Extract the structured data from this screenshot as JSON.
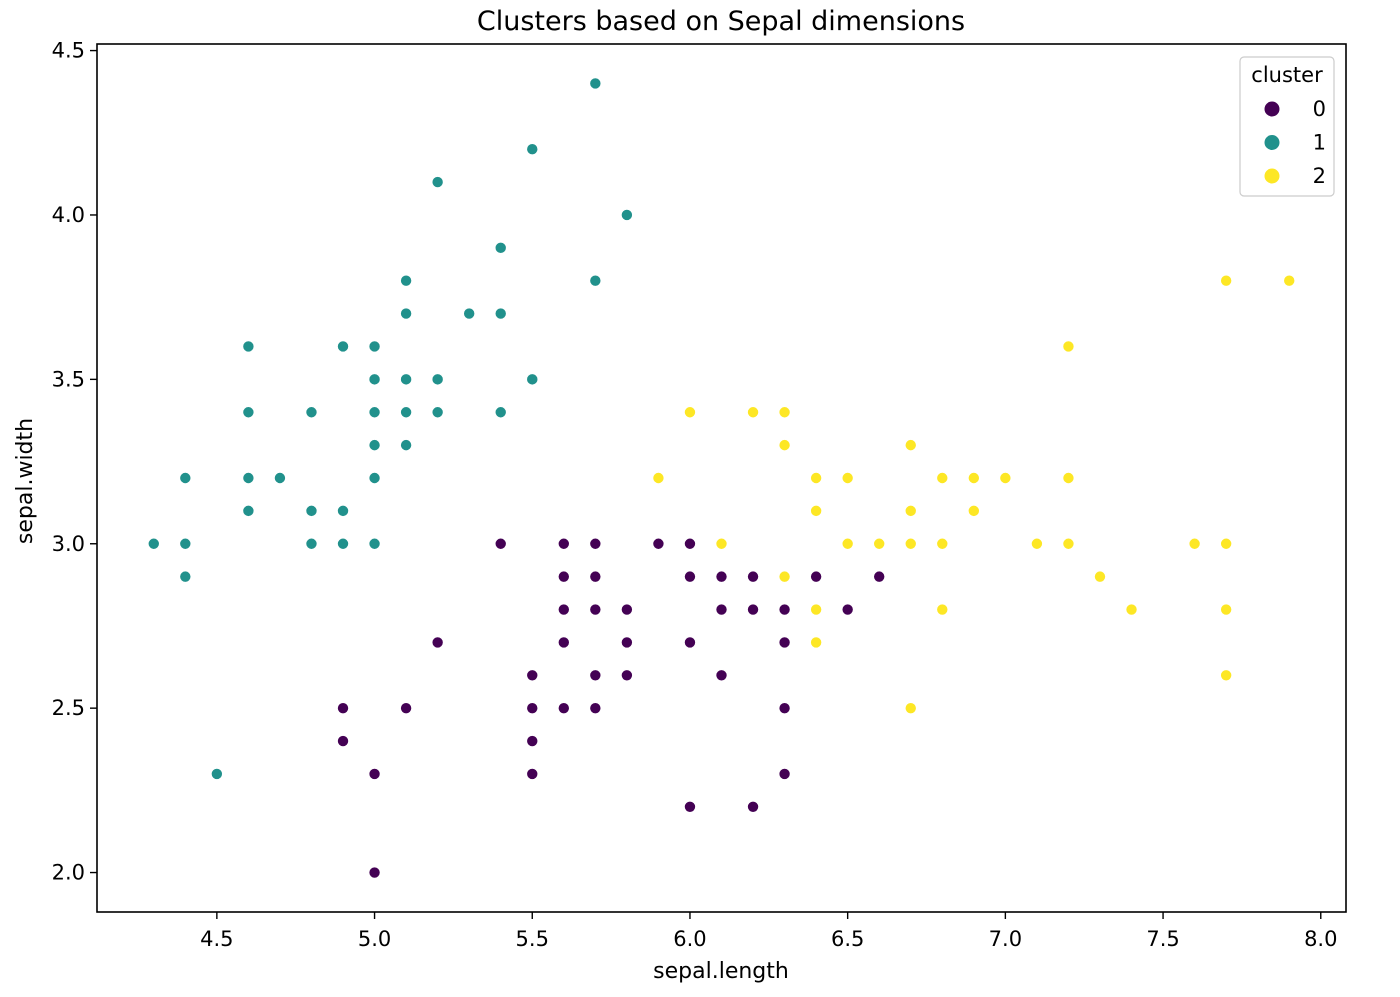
{
  "chart_data": {
    "type": "scatter",
    "title": "Clusters based on Sepal dimensions",
    "xlabel": "sepal.length",
    "ylabel": "sepal.width",
    "xlim": [
      4.12,
      8.08
    ],
    "ylim": [
      1.88,
      4.52
    ],
    "xticks": [
      "4.5",
      "5.0",
      "5.5",
      "6.0",
      "6.5",
      "7.0",
      "7.5",
      "8.0"
    ],
    "yticks": [
      "2.0",
      "2.5",
      "3.0",
      "3.5",
      "4.0",
      "4.5"
    ],
    "grid": false,
    "legend": {
      "title": "cluster",
      "placement": "top-right"
    },
    "series": [
      {
        "name": "0",
        "color": "#440154",
        "points": [
          [
            5.4,
            3.0
          ],
          [
            5.6,
            3.0
          ],
          [
            5.7,
            3.0
          ],
          [
            5.9,
            3.0
          ],
          [
            6.0,
            3.0
          ],
          [
            5.6,
            2.9
          ],
          [
            5.7,
            2.9
          ],
          [
            6.0,
            2.9
          ],
          [
            6.1,
            2.9
          ],
          [
            6.2,
            2.9
          ],
          [
            6.4,
            2.9
          ],
          [
            6.6,
            2.9
          ],
          [
            5.6,
            2.8
          ],
          [
            5.7,
            2.8
          ],
          [
            5.8,
            2.8
          ],
          [
            6.1,
            2.8
          ],
          [
            6.2,
            2.8
          ],
          [
            6.3,
            2.8
          ],
          [
            6.5,
            2.8
          ],
          [
            5.2,
            2.7
          ],
          [
            5.6,
            2.7
          ],
          [
            5.8,
            2.7
          ],
          [
            6.0,
            2.7
          ],
          [
            6.3,
            2.7
          ],
          [
            5.5,
            2.6
          ],
          [
            5.7,
            2.6
          ],
          [
            5.8,
            2.6
          ],
          [
            6.1,
            2.6
          ],
          [
            4.9,
            2.5
          ],
          [
            5.1,
            2.5
          ],
          [
            5.5,
            2.5
          ],
          [
            5.6,
            2.5
          ],
          [
            5.7,
            2.5
          ],
          [
            6.3,
            2.5
          ],
          [
            4.9,
            2.4
          ],
          [
            5.5,
            2.4
          ],
          [
            5.0,
            2.3
          ],
          [
            5.5,
            2.3
          ],
          [
            6.3,
            2.3
          ],
          [
            6.0,
            2.2
          ],
          [
            6.2,
            2.2
          ],
          [
            5.0,
            2.0
          ]
        ]
      },
      {
        "name": "1",
        "color": "#21918c",
        "points": [
          [
            5.7,
            4.4
          ],
          [
            5.5,
            4.2
          ],
          [
            5.2,
            4.1
          ],
          [
            5.8,
            4.0
          ],
          [
            5.4,
            3.9
          ],
          [
            5.1,
            3.8
          ],
          [
            5.7,
            3.8
          ],
          [
            5.1,
            3.7
          ],
          [
            5.3,
            3.7
          ],
          [
            5.4,
            3.7
          ],
          [
            4.6,
            3.6
          ],
          [
            4.9,
            3.6
          ],
          [
            5.0,
            3.6
          ],
          [
            5.0,
            3.5
          ],
          [
            5.1,
            3.5
          ],
          [
            5.2,
            3.5
          ],
          [
            5.5,
            3.5
          ],
          [
            4.6,
            3.4
          ],
          [
            4.8,
            3.4
          ],
          [
            5.0,
            3.4
          ],
          [
            5.1,
            3.4
          ],
          [
            5.2,
            3.4
          ],
          [
            5.4,
            3.4
          ],
          [
            5.0,
            3.3
          ],
          [
            5.1,
            3.3
          ],
          [
            4.4,
            3.2
          ],
          [
            4.6,
            3.2
          ],
          [
            4.7,
            3.2
          ],
          [
            5.0,
            3.2
          ],
          [
            4.6,
            3.1
          ],
          [
            4.8,
            3.1
          ],
          [
            4.9,
            3.1
          ],
          [
            4.3,
            3.0
          ],
          [
            4.4,
            3.0
          ],
          [
            4.8,
            3.0
          ],
          [
            4.9,
            3.0
          ],
          [
            5.0,
            3.0
          ],
          [
            4.4,
            2.9
          ],
          [
            4.5,
            2.3
          ]
        ]
      },
      {
        "name": "2",
        "color": "#fde725",
        "points": [
          [
            7.7,
            3.8
          ],
          [
            7.9,
            3.8
          ],
          [
            7.2,
            3.6
          ],
          [
            6.0,
            3.4
          ],
          [
            6.2,
            3.4
          ],
          [
            6.3,
            3.4
          ],
          [
            6.3,
            3.3
          ],
          [
            6.7,
            3.3
          ],
          [
            5.9,
            3.2
          ],
          [
            6.4,
            3.2
          ],
          [
            6.5,
            3.2
          ],
          [
            6.8,
            3.2
          ],
          [
            6.9,
            3.2
          ],
          [
            7.0,
            3.2
          ],
          [
            7.2,
            3.2
          ],
          [
            6.4,
            3.1
          ],
          [
            6.7,
            3.1
          ],
          [
            6.9,
            3.1
          ],
          [
            6.1,
            3.0
          ],
          [
            6.5,
            3.0
          ],
          [
            6.6,
            3.0
          ],
          [
            6.7,
            3.0
          ],
          [
            6.8,
            3.0
          ],
          [
            7.1,
            3.0
          ],
          [
            7.2,
            3.0
          ],
          [
            7.6,
            3.0
          ],
          [
            7.7,
            3.0
          ],
          [
            6.3,
            2.9
          ],
          [
            7.3,
            2.9
          ],
          [
            6.4,
            2.8
          ],
          [
            6.8,
            2.8
          ],
          [
            7.4,
            2.8
          ],
          [
            7.7,
            2.8
          ],
          [
            6.4,
            2.7
          ],
          [
            7.7,
            2.6
          ],
          [
            6.7,
            2.5
          ]
        ]
      }
    ]
  }
}
